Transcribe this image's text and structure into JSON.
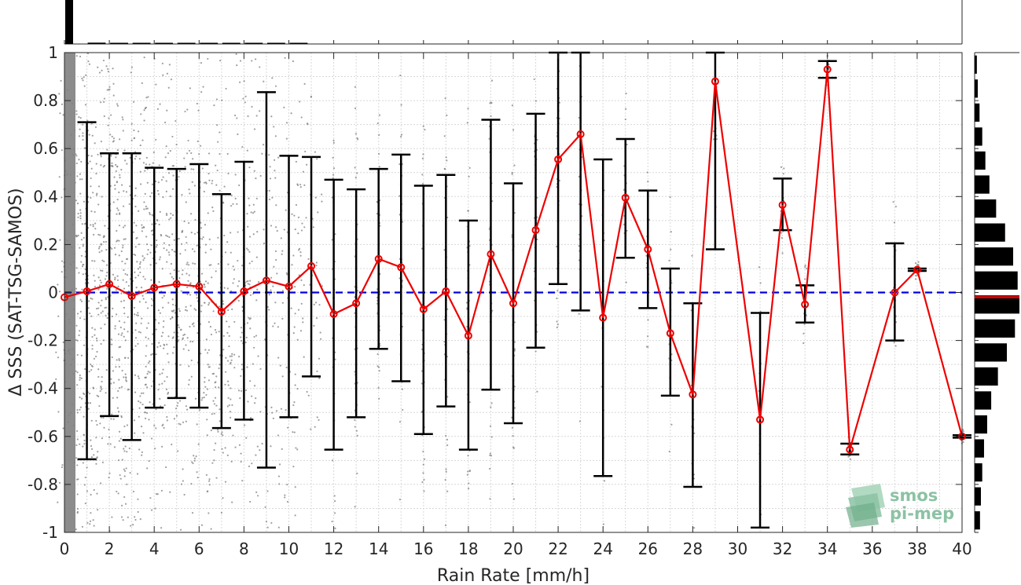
{
  "chart_data": {
    "type": "scatter",
    "xlabel": "Rain Rate [mm/h]",
    "ylabel": "Δ SSS (SAT-TSG-SAMOS)",
    "xlim": [
      0,
      40
    ],
    "ylim": [
      -1,
      1
    ],
    "x_ticks": [
      0,
      2,
      4,
      6,
      8,
      10,
      12,
      14,
      16,
      18,
      20,
      22,
      24,
      26,
      28,
      30,
      32,
      34,
      36,
      38,
      40
    ],
    "y_ticks": [
      -1,
      -0.8,
      -0.6,
      -0.4,
      -0.2,
      0,
      0.2,
      0.4,
      0.6,
      0.8,
      1
    ],
    "y_tick_labels": [
      "-1",
      "-0.8",
      "-0.6",
      "-0.4",
      "-0.2",
      "0",
      "0.2",
      "0.4",
      "0.6",
      "0.8",
      "1"
    ],
    "grid": true,
    "zero_line": {
      "y": 0,
      "color": "#0000dd",
      "style": "dashed"
    },
    "binned_mean": {
      "color": "#ee0000",
      "x": [
        0,
        1,
        2,
        3,
        4,
        5,
        6,
        7,
        8,
        9,
        10,
        11,
        12,
        13,
        14,
        15,
        16,
        17,
        18,
        19,
        20,
        21,
        22,
        23,
        24,
        25,
        26,
        27,
        28,
        29,
        31,
        32,
        33,
        34,
        35,
        37,
        38,
        40
      ],
      "y": [
        -0.02,
        0.005,
        0.035,
        -0.015,
        0.02,
        0.035,
        0.025,
        -0.08,
        0.005,
        0.05,
        0.025,
        0.11,
        -0.09,
        -0.045,
        0.14,
        0.105,
        -0.07,
        0.005,
        -0.18,
        0.16,
        -0.045,
        0.26,
        0.555,
        0.66,
        -0.105,
        0.395,
        0.18,
        -0.17,
        -0.425,
        0.88,
        -0.53,
        0.365,
        -0.05,
        0.93,
        -0.655,
        0.0,
        0.095,
        -0.6
      ]
    },
    "error_bars": {
      "color": "#000000",
      "x": [
        1,
        2,
        3,
        4,
        5,
        6,
        7,
        8,
        9,
        10,
        11,
        12,
        13,
        14,
        15,
        16,
        17,
        18,
        19,
        20,
        21,
        22,
        23,
        24,
        25,
        26,
        27,
        28,
        29,
        31,
        32,
        33,
        34,
        35,
        37,
        38,
        40
      ],
      "lower": [
        -0.695,
        -0.515,
        -0.615,
        -0.48,
        -0.44,
        -0.48,
        -0.565,
        -0.53,
        -0.73,
        -0.52,
        -0.35,
        -0.655,
        -0.52,
        -0.235,
        -0.37,
        -0.59,
        -0.475,
        -0.655,
        -0.405,
        -0.545,
        -0.23,
        0.035,
        -0.075,
        -0.765,
        0.145,
        -0.065,
        -0.43,
        -0.81,
        0.18,
        -0.98,
        0.26,
        -0.125,
        0.895,
        -0.675,
        -0.2,
        0.09,
        -0.605
      ],
      "upper": [
        0.71,
        0.58,
        0.58,
        0.52,
        0.515,
        0.535,
        0.41,
        0.545,
        0.835,
        0.57,
        0.565,
        0.47,
        0.43,
        0.515,
        0.575,
        0.445,
        0.49,
        0.3,
        0.72,
        0.455,
        0.745,
        1.0,
        1.0,
        0.555,
        0.64,
        0.425,
        0.1,
        -0.045,
        1.0,
        -0.085,
        0.475,
        0.03,
        0.965,
        -0.63,
        0.205,
        0.1,
        -0.595
      ]
    },
    "scatter_points": {
      "color": "#808080",
      "description": "raw collocations per rain-rate value"
    },
    "marginal_histogram_top": {
      "color": "#000000",
      "x_bins": [
        0,
        1,
        2,
        3,
        4,
        5,
        6,
        7,
        8,
        9,
        10
      ],
      "relative_counts": [
        1.0,
        0.03,
        0.015,
        0.01,
        0.008,
        0.006,
        0.005,
        0.004,
        0.003,
        0.003,
        0.002
      ]
    },
    "marginal_histogram_right": {
      "color": "#000000",
      "median_line_color": "#cc0000",
      "y_bins": [
        0.95,
        0.85,
        0.75,
        0.65,
        0.55,
        0.45,
        0.35,
        0.25,
        0.15,
        0.05,
        -0.05,
        -0.15,
        -0.25,
        -0.35,
        -0.45,
        -0.55,
        -0.65,
        -0.75,
        -0.85,
        -0.95
      ],
      "relative_counts": [
        0.05,
        0.07,
        0.11,
        0.17,
        0.24,
        0.33,
        0.48,
        0.68,
        0.86,
        0.96,
        1.0,
        0.9,
        0.72,
        0.52,
        0.37,
        0.28,
        0.21,
        0.17,
        0.14,
        0.12
      ]
    },
    "logo": {
      "line1": "smos",
      "line2": "pi-mep",
      "color": "#8cc2a4"
    }
  }
}
